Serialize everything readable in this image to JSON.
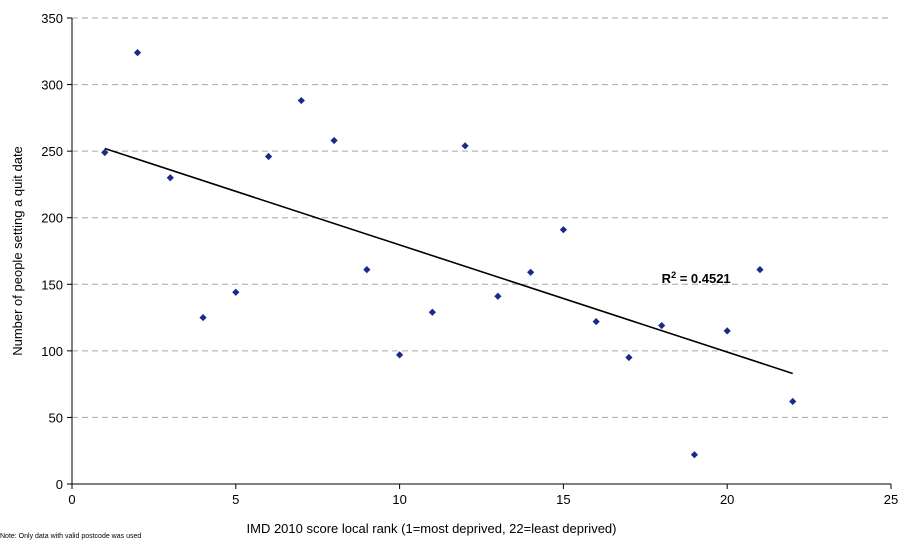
{
  "chart_data": {
    "type": "scatter",
    "xlabel": "IMD 2010 score local rank (1=most deprived, 22=least deprived)",
    "ylabel": "Number of people setting a quit date",
    "xlim": [
      0,
      25
    ],
    "ylim": [
      0,
      350
    ],
    "x_ticks": [
      "0",
      "5",
      "10",
      "15",
      "20",
      "25"
    ],
    "y_ticks": [
      "0",
      "50",
      "100",
      "150",
      "200",
      "250",
      "300",
      "350"
    ],
    "grid": "horizontal dashed",
    "legend": "none",
    "series": [
      {
        "points": [
          {
            "x": 1,
            "y": 249
          },
          {
            "x": 2,
            "y": 324
          },
          {
            "x": 3,
            "y": 230
          },
          {
            "x": 4,
            "y": 125
          },
          {
            "x": 5,
            "y": 144
          },
          {
            "x": 6,
            "y": 246
          },
          {
            "x": 7,
            "y": 288
          },
          {
            "x": 8,
            "y": 258
          },
          {
            "x": 9,
            "y": 161
          },
          {
            "x": 10,
            "y": 97
          },
          {
            "x": 11,
            "y": 129
          },
          {
            "x": 12,
            "y": 254
          },
          {
            "x": 13,
            "y": 141
          },
          {
            "x": 14,
            "y": 159
          },
          {
            "x": 15,
            "y": 191
          },
          {
            "x": 16,
            "y": 122
          },
          {
            "x": 17,
            "y": 95
          },
          {
            "x": 18,
            "y": 119
          },
          {
            "x": 19,
            "y": 22
          },
          {
            "x": 20,
            "y": 115
          },
          {
            "x": 21,
            "y": 161
          },
          {
            "x": 22,
            "y": 62
          }
        ]
      }
    ],
    "trendline": {
      "type": "linear",
      "from": {
        "x": 1,
        "y": 252
      },
      "to": {
        "x": 22,
        "y": 83
      },
      "r2_label": "R² = 0.4521",
      "r2_position": {
        "x": 18,
        "y": 160
      }
    },
    "colors": {
      "marker": "#1a2a8c",
      "trendline": "#000000",
      "grid": "#a6a6a6",
      "axis": "#000000"
    }
  },
  "note": "Note: Only data with valid postcode was used"
}
